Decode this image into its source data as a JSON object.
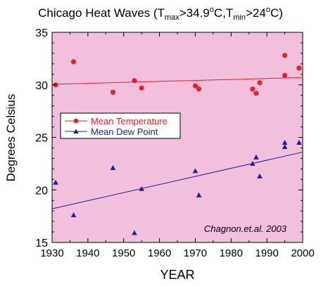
{
  "chart_data": {
    "type": "scatter",
    "title": {
      "prefix": "Chicago Heat Waves (T",
      "sub1": "max",
      "mid1": ">34.9",
      "sup1": "o",
      "mid2": "C,T",
      "sub2": "min",
      "mid3": ">24",
      "sup2": "o",
      "suffix": "C)"
    },
    "xlabel": "YEAR",
    "ylabel": "Degrees Celsius",
    "xlim": [
      1930,
      2000
    ],
    "ylim": [
      15,
      35
    ],
    "xticks": [
      1930,
      1940,
      1950,
      1960,
      1970,
      1980,
      1990,
      2000
    ],
    "yticks": [
      15,
      20,
      25,
      30,
      35
    ],
    "annotation": "Chagnon.et.al. 2003",
    "legend_position": "left-middle",
    "background_color": "#f2bfdc",
    "series": [
      {
        "name": "Mean Temperature",
        "color": "#e8202a",
        "marker": "circle",
        "x": [
          1931,
          1936,
          1947,
          1953,
          1955,
          1970,
          1971,
          1986,
          1987,
          1988,
          1995,
          1995,
          1999
        ],
        "y": [
          30.0,
          32.2,
          29.3,
          30.4,
          29.7,
          29.9,
          29.6,
          29.6,
          29.2,
          30.2,
          30.9,
          32.8,
          31.6
        ],
        "trend": [
          [
            1930,
            30.05
          ],
          [
            2000,
            30.7
          ]
        ]
      },
      {
        "name": "Mean Dew Point",
        "color": "#1c1ca8",
        "marker": "triangle",
        "x": [
          1931,
          1936,
          1947,
          1953,
          1955,
          1970,
          1971,
          1986,
          1987,
          1988,
          1995,
          1995,
          1999
        ],
        "y": [
          20.7,
          17.6,
          22.1,
          15.9,
          20.1,
          21.8,
          19.5,
          22.5,
          23.1,
          21.3,
          24.1,
          24.5,
          24.5
        ],
        "trend": [
          [
            1930,
            18.2
          ],
          [
            2000,
            23.6
          ]
        ]
      }
    ]
  }
}
